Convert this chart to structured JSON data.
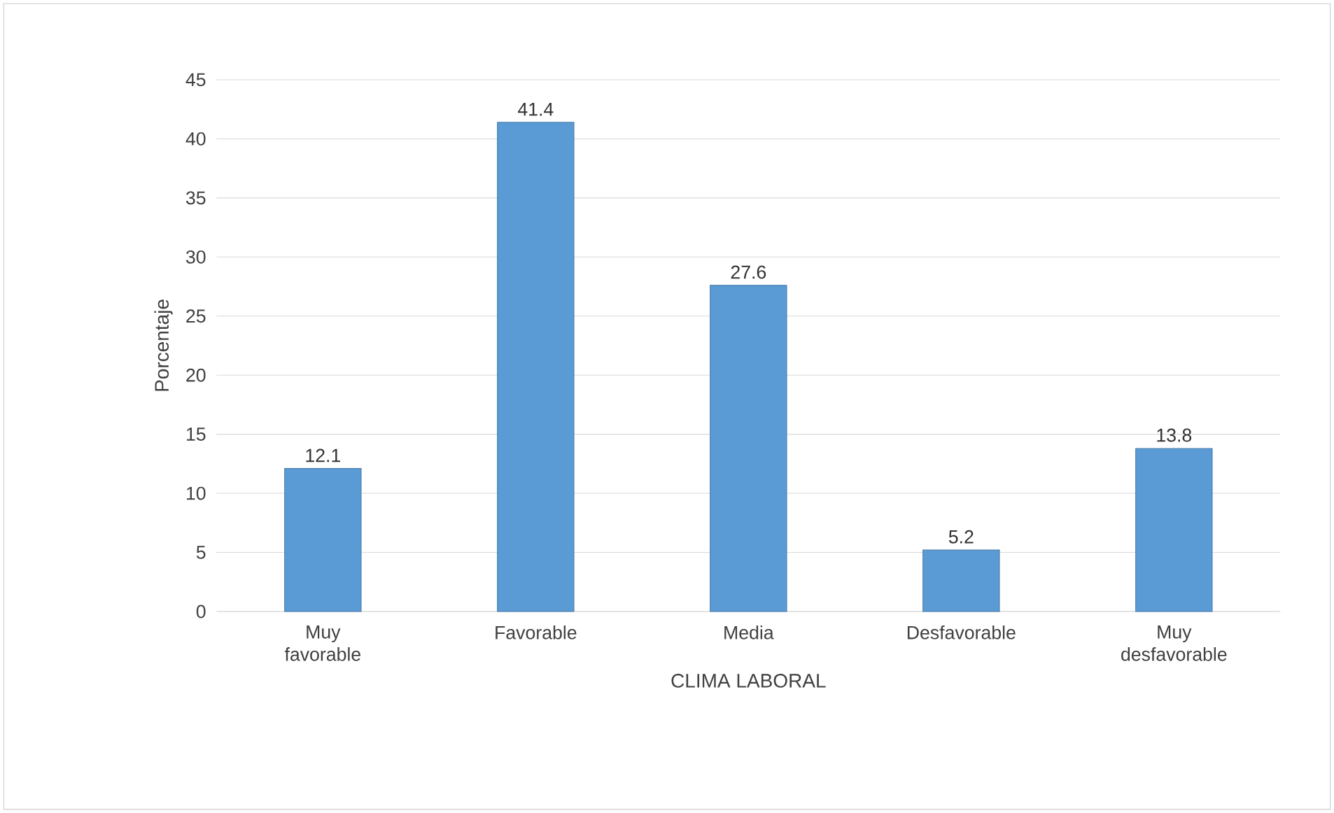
{
  "chart_data": {
    "type": "bar",
    "categories": [
      "Muy favorable",
      "Favorable",
      "Media",
      "Desfavorable",
      "Muy desfavorable"
    ],
    "values": [
      12.1,
      41.4,
      27.6,
      5.2,
      13.8
    ],
    "color": "#5b9bd5",
    "xlabel": "CLIMA LABORAL",
    "ylabel": "Porcentaje",
    "ylim": [
      0,
      45
    ],
    "yticks": [
      0,
      5,
      10,
      15,
      20,
      25,
      30,
      35,
      40,
      45
    ],
    "grid": "y",
    "data_labels": true
  }
}
